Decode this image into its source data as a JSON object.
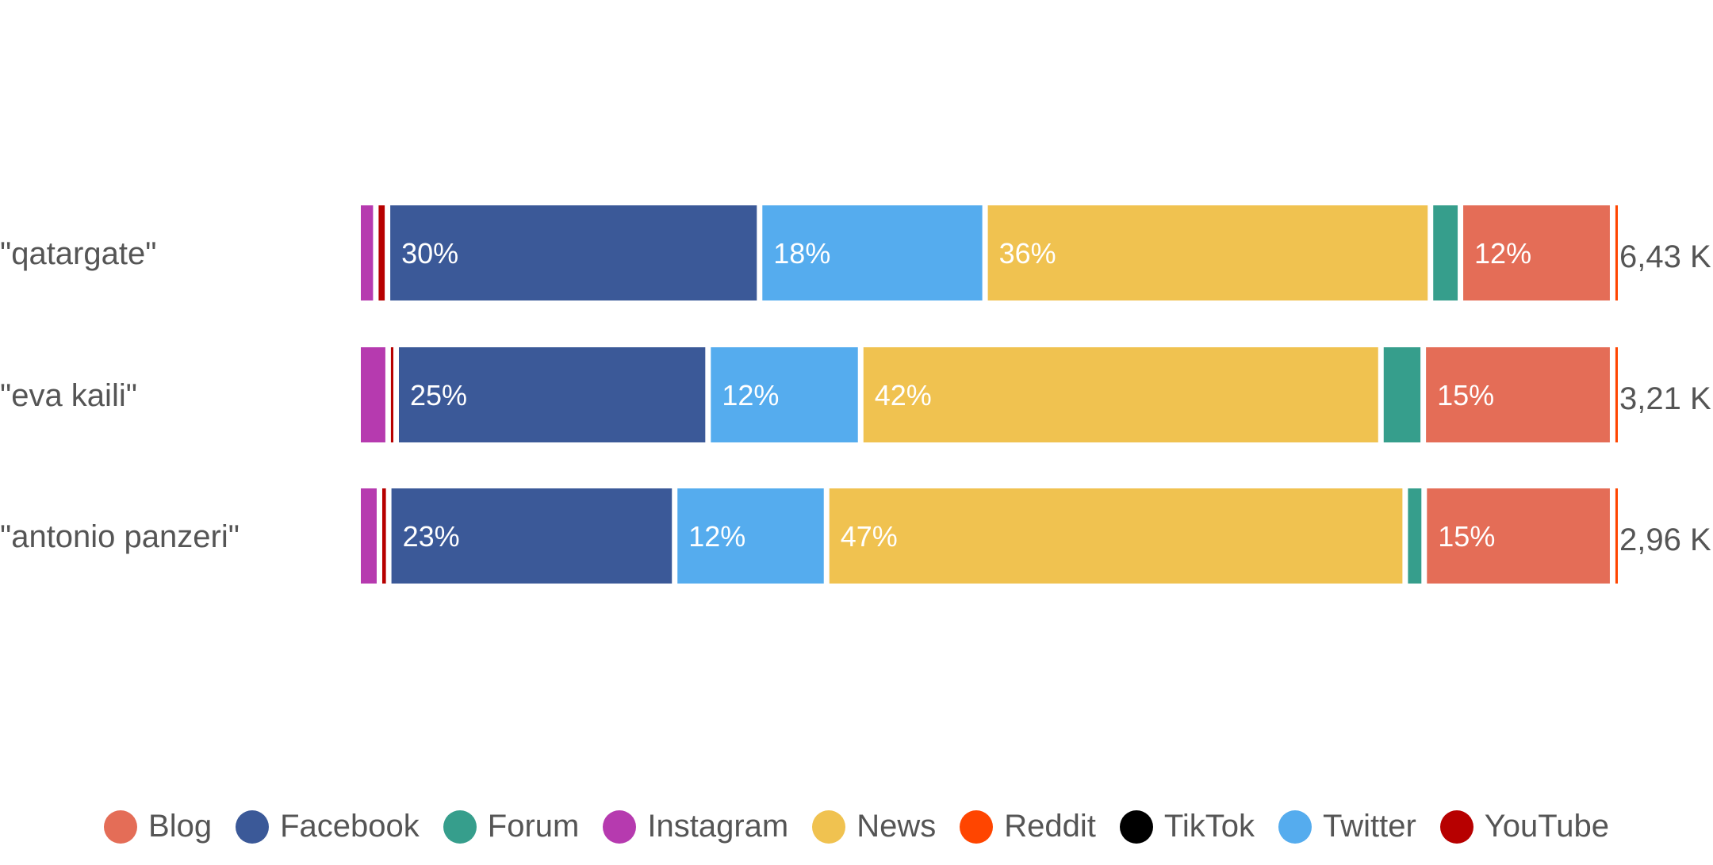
{
  "chart_data": {
    "type": "bar",
    "orientation": "horizontal",
    "stacked": "percent",
    "title": "",
    "categories": [
      "\"qatargate\"",
      "\"eva kaili\"",
      "\"antonio panzeri\""
    ],
    "totals": [
      "6,43 K",
      "3,21 K",
      "2,96 K"
    ],
    "segment_order": [
      "Instagram",
      "YouTube",
      "Facebook",
      "Twitter",
      "News",
      "Forum",
      "Blog",
      "Reddit"
    ],
    "series": [
      {
        "name": "Instagram",
        "color": "#B63AAF",
        "values": [
          1,
          2,
          1.3
        ]
      },
      {
        "name": "YouTube",
        "color": "#B70000",
        "values": [
          0.5,
          0.2,
          0.3
        ]
      },
      {
        "name": "Facebook",
        "color": "#3B5998",
        "values": [
          30,
          25,
          23
        ]
      },
      {
        "name": "Twitter",
        "color": "#55ACEE",
        "values": [
          18,
          12,
          12
        ]
      },
      {
        "name": "News",
        "color": "#F0C250",
        "values": [
          36,
          42,
          47
        ]
      },
      {
        "name": "Forum",
        "color": "#369E8C",
        "values": [
          2,
          3,
          1.1
        ]
      },
      {
        "name": "Blog",
        "color": "#E46D57",
        "values": [
          12,
          15,
          15
        ]
      },
      {
        "name": "Reddit",
        "color": "#FF4500",
        "values": [
          0.2,
          0.2,
          0.2
        ]
      }
    ],
    "legend": {
      "placement": "bottom",
      "entries": [
        {
          "label": "Blog",
          "color": "#E46D57"
        },
        {
          "label": "Facebook",
          "color": "#3B5998"
        },
        {
          "label": "Forum",
          "color": "#369E8C"
        },
        {
          "label": "Instagram",
          "color": "#B63AAF"
        },
        {
          "label": "News",
          "color": "#F0C250"
        },
        {
          "label": "Reddit",
          "color": "#FF4500"
        },
        {
          "label": "TikTok",
          "color": "#000000"
        },
        {
          "label": "Twitter",
          "color": "#55ACEE"
        },
        {
          "label": "YouTube",
          "color": "#B70000"
        }
      ]
    },
    "label_threshold_percent": 10
  }
}
